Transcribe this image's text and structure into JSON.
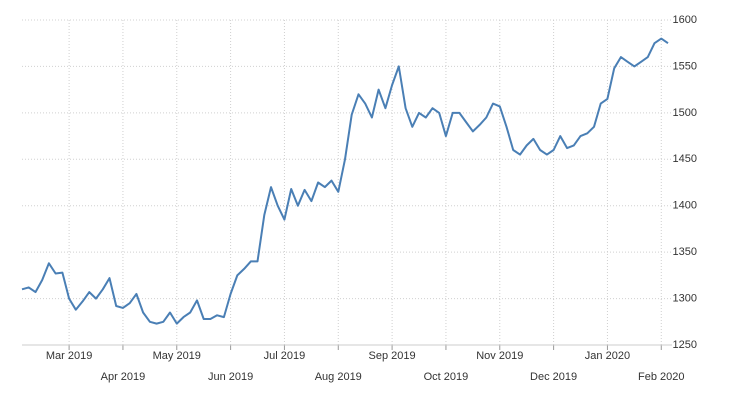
{
  "chart_data": {
    "type": "line",
    "categories": [
      null,
      null,
      null,
      null,
      null,
      null,
      null,
      "Mar 2019",
      null,
      null,
      null,
      null,
      null,
      null,
      null,
      "Apr 2019",
      null,
      null,
      null,
      null,
      null,
      null,
      null,
      "May 2019",
      null,
      null,
      null,
      null,
      null,
      null,
      null,
      "Jun 2019",
      null,
      null,
      null,
      null,
      null,
      null,
      null,
      "Jul 2019",
      null,
      null,
      null,
      null,
      null,
      null,
      null,
      "Aug 2019",
      null,
      null,
      null,
      null,
      null,
      null,
      null,
      "Sep 2019",
      null,
      null,
      null,
      null,
      null,
      null,
      null,
      "Oct 2019",
      null,
      null,
      null,
      null,
      null,
      null,
      null,
      "Nov 2019",
      null,
      null,
      null,
      null,
      null,
      null,
      null,
      "Dec 2019",
      null,
      null,
      null,
      null,
      null,
      null,
      null,
      "Jan 2020",
      null,
      null,
      null,
      null,
      null,
      null,
      null,
      "Feb 2020",
      null
    ],
    "values": [
      1310,
      1312,
      1307,
      1320,
      1338,
      1327,
      1328,
      1300,
      1288,
      1297,
      1307,
      1300,
      1310,
      1322,
      1292,
      1290,
      1295,
      1305,
      1285,
      1275,
      1273,
      1275,
      1285,
      1273,
      1280,
      1285,
      1298,
      1278,
      1278,
      1282,
      1280,
      1305,
      1325,
      1332,
      1340,
      1340,
      1390,
      1420,
      1400,
      1385,
      1418,
      1400,
      1417,
      1405,
      1425,
      1420,
      1427,
      1415,
      1450,
      1498,
      1520,
      1510,
      1495,
      1525,
      1505,
      1530,
      1550,
      1505,
      1485,
      1500,
      1495,
      1505,
      1500,
      1475,
      1500,
      1500,
      1490,
      1480,
      1487,
      1495,
      1510,
      1507,
      1485,
      1460,
      1455,
      1465,
      1472,
      1460,
      1455,
      1460,
      1475,
      1462,
      1465,
      1475,
      1478,
      1485,
      1510,
      1515,
      1548,
      1560,
      1555,
      1550,
      1555,
      1560,
      1575,
      1580,
      1575
    ],
    "color": "#4a7fb5",
    "ylim": [
      1250,
      1600
    ],
    "yticks": [
      1250,
      1300,
      1350,
      1400,
      1450,
      1500,
      1550,
      1600
    ],
    "grid": true
  }
}
